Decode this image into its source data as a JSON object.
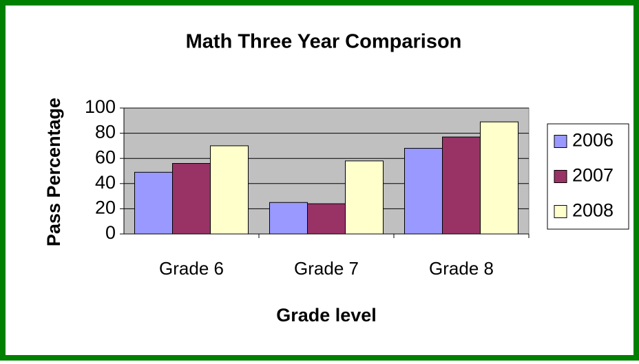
{
  "chart_data": {
    "type": "bar",
    "title": "Math Three Year Comparison",
    "x_label": "Grade level",
    "y_label": "Pass Percentage",
    "categories": [
      "Grade 6",
      "Grade 7",
      "Grade 8"
    ],
    "series": [
      {
        "name": "2006",
        "color": "#9999ff",
        "values": [
          49,
          25,
          68
        ]
      },
      {
        "name": "2007",
        "color": "#993366",
        "values": [
          56,
          24,
          77
        ]
      },
      {
        "name": "2008",
        "color": "#ffffcc",
        "values": [
          70,
          58,
          89
        ]
      }
    ],
    "ylim": [
      0,
      100
    ],
    "yticks": [
      0,
      20,
      40,
      60,
      80,
      100
    ],
    "grid": true,
    "legend": "right"
  }
}
